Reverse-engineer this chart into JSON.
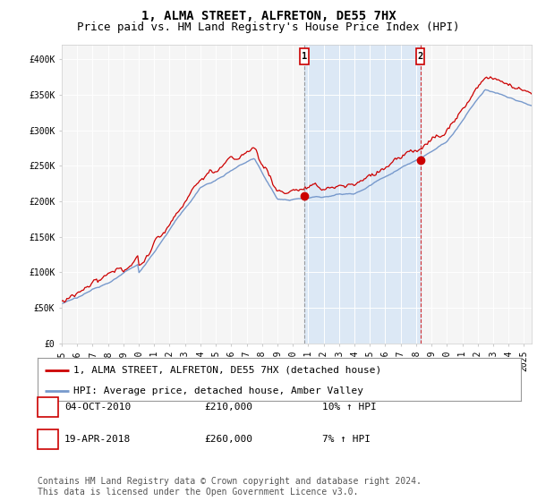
{
  "title": "1, ALMA STREET, ALFRETON, DE55 7HX",
  "subtitle": "Price paid vs. HM Land Registry's House Price Index (HPI)",
  "ylabel_ticks": [
    "£0",
    "£50K",
    "£100K",
    "£150K",
    "£200K",
    "£250K",
    "£300K",
    "£350K",
    "£400K"
  ],
  "ytick_values": [
    0,
    50000,
    100000,
    150000,
    200000,
    250000,
    300000,
    350000,
    400000
  ],
  "ylim": [
    0,
    420000
  ],
  "xlim_start": 1995.0,
  "xlim_end": 2025.5,
  "plot_bg_color": "#f5f5f5",
  "blue_shade_color": "#dce8f5",
  "red_line_color": "#cc0000",
  "blue_line_color": "#7799cc",
  "marker1_x": 2010.75,
  "marker1_y": 207000,
  "marker2_x": 2018.28,
  "marker2_y": 258000,
  "marker_box_color": "#cc0000",
  "vline1_color": "#888888",
  "vline2_color": "#cc0000",
  "legend_label_red": "1, ALMA STREET, ALFRETON, DE55 7HX (detached house)",
  "legend_label_blue": "HPI: Average price, detached house, Amber Valley",
  "transaction1_label": "1",
  "transaction1_date": "04-OCT-2010",
  "transaction1_price": "£210,000",
  "transaction1_hpi": "10% ↑ HPI",
  "transaction2_label": "2",
  "transaction2_date": "19-APR-2018",
  "transaction2_price": "£260,000",
  "transaction2_hpi": "7% ↑ HPI",
  "footer": "Contains HM Land Registry data © Crown copyright and database right 2024.\nThis data is licensed under the Open Government Licence v3.0.",
  "title_fontsize": 10,
  "subtitle_fontsize": 9,
  "axis_fontsize": 7,
  "legend_fontsize": 8,
  "footer_fontsize": 7
}
